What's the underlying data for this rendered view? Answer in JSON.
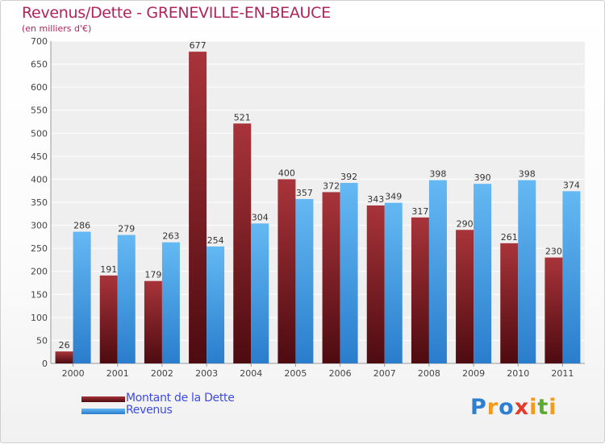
{
  "chart_data": {
    "type": "bar",
    "title": "Revenus/Dette - GRENEVILLE-EN-BEAUCE",
    "subtitle": "(en milliers d'€)",
    "categories": [
      "2000",
      "2001",
      "2002",
      "2003",
      "2004",
      "2005",
      "2006",
      "2007",
      "2008",
      "2009",
      "2010",
      "2011"
    ],
    "series": [
      {
        "name": "Montant de la Dette",
        "color": "#7a1e25",
        "values": [
          26,
          191,
          179,
          677,
          521,
          400,
          372,
          343,
          317,
          290,
          261,
          230
        ]
      },
      {
        "name": "Revenus",
        "color": "#4aa3e6",
        "values": [
          286,
          279,
          263,
          254,
          304,
          357,
          392,
          349,
          398,
          390,
          398,
          374
        ]
      }
    ],
    "ylim": [
      0,
      700
    ],
    "yticks": [
      0,
      50,
      100,
      150,
      200,
      250,
      300,
      350,
      400,
      450,
      500,
      550,
      600,
      650,
      700
    ],
    "grid": true,
    "legend": "bottom-left"
  },
  "logo": {
    "text": "Proxiti",
    "letters": [
      "P",
      "r",
      "o",
      "x",
      "i",
      "t",
      "i"
    ],
    "colors": [
      "#2f7fd0",
      "#f29a1d",
      "#2f7fd0",
      "#e33a2b",
      "#f29a1d",
      "#5aab2f",
      "#f29a1d"
    ]
  }
}
